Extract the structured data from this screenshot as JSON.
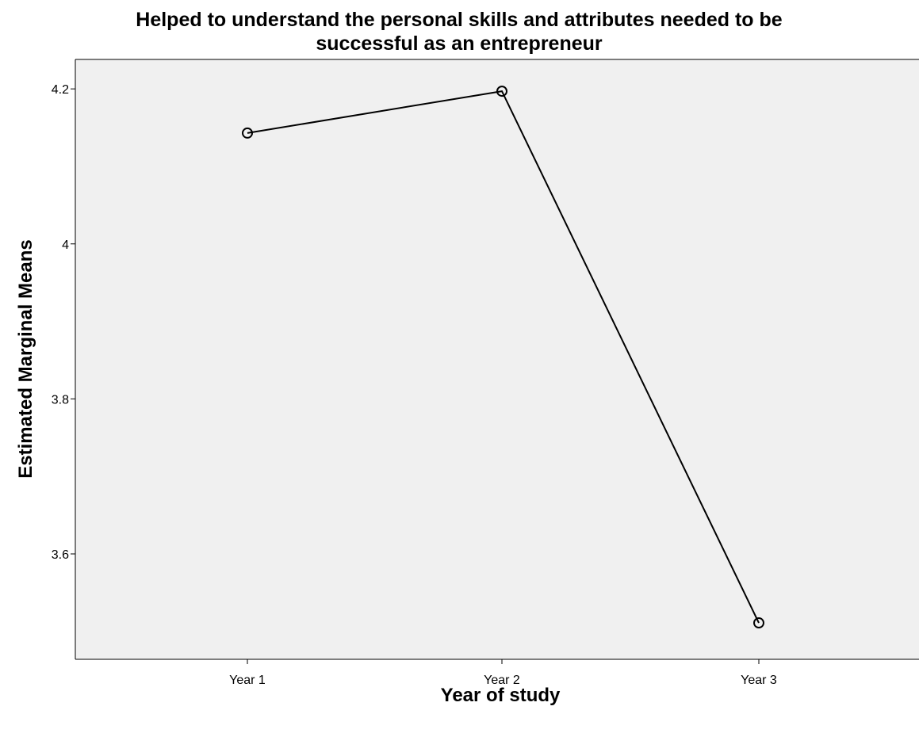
{
  "chart_data": {
    "type": "line",
    "title_lines": [
      "Helped to understand the personal skills and attributes needed to be",
      "successful as an entrepreneur"
    ],
    "xlabel": "Year of study",
    "ylabel": "Estimated Marginal Means",
    "categories": [
      "Year 1",
      "Year 2",
      "Year 3"
    ],
    "series": [
      {
        "values": [
          4.143,
          4.197,
          3.511
        ]
      }
    ],
    "ylim": [
      3.464,
      4.238
    ],
    "y_ticks": [
      3.6,
      3.8,
      4,
      4.2
    ],
    "y_tick_labels": [
      "3.6",
      "3.8",
      "4",
      "4.2"
    ],
    "grid": false,
    "marker": "open-circle",
    "colors": {
      "plot_background": "#f0f0f0",
      "line": "#000000",
      "axis": "#000000"
    }
  }
}
